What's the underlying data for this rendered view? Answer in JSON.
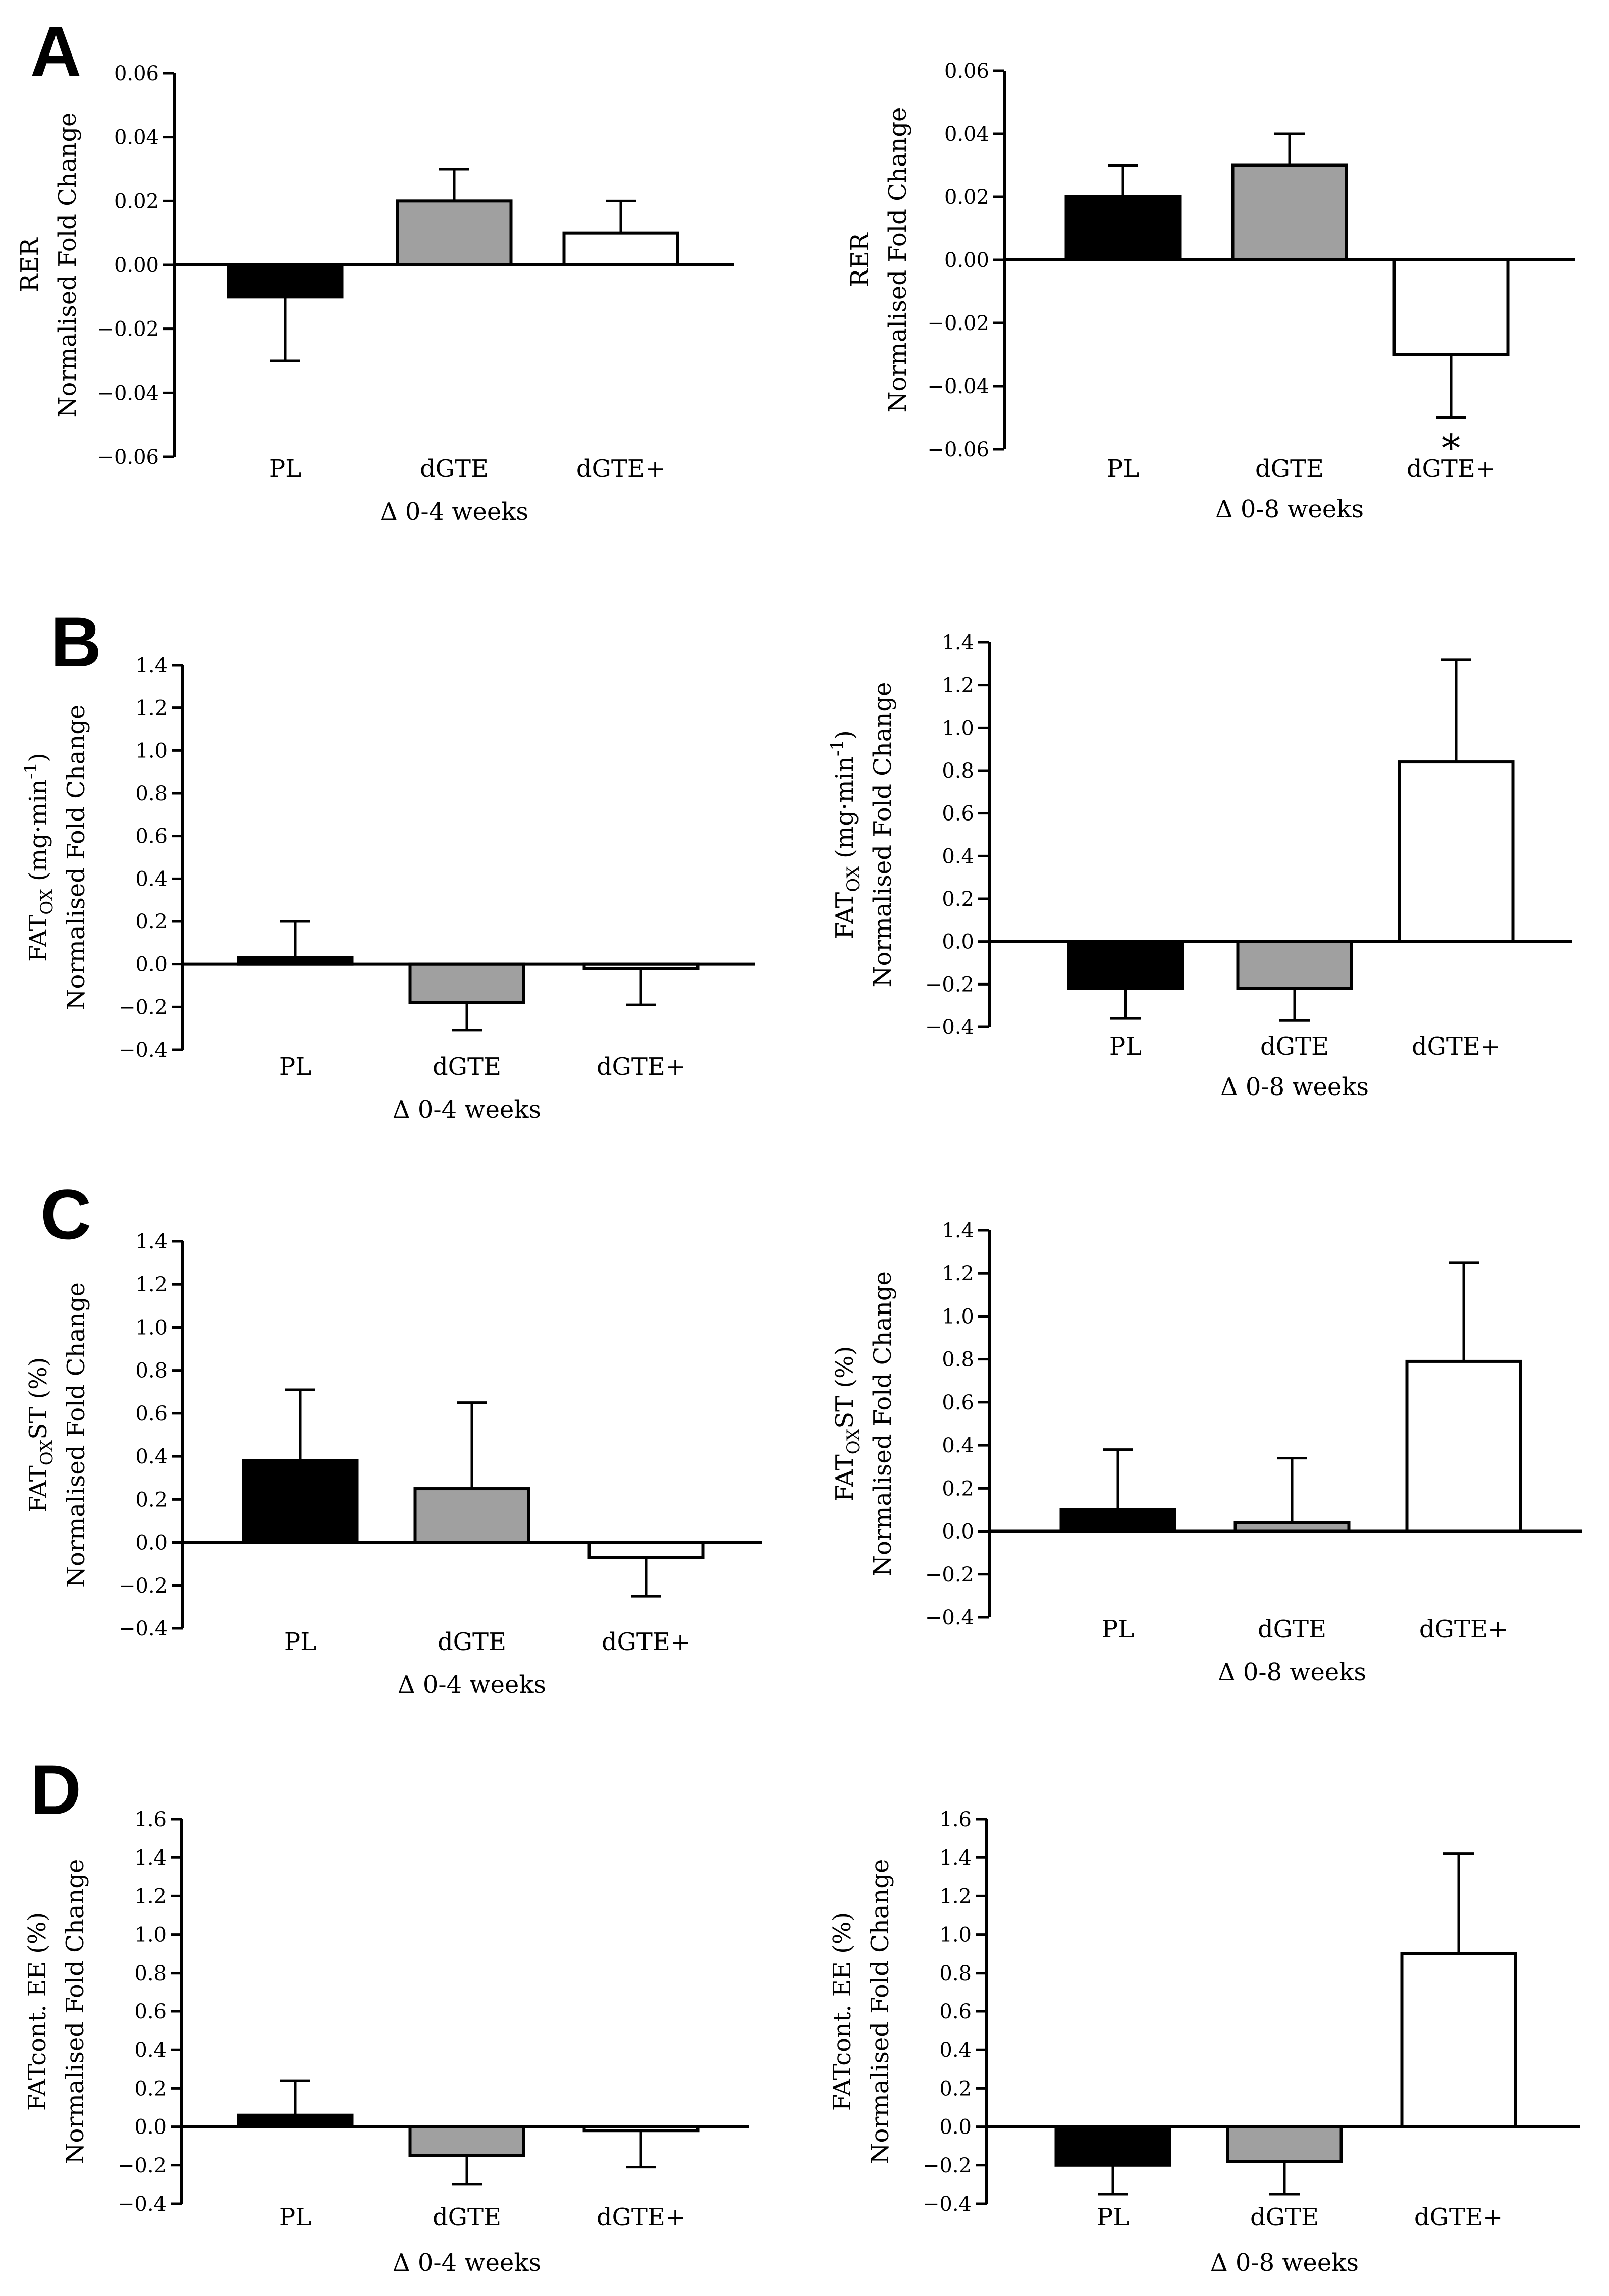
{
  "panel_letters": [
    "A",
    "B",
    "C",
    "D"
  ],
  "chart_data": [
    {
      "type": "bar",
      "panel": "A",
      "title": "",
      "categories": [
        "PL",
        "dGTE",
        "dGTE+"
      ],
      "values": [
        -0.01,
        0.02,
        0.01
      ],
      "errors": [
        0.02,
        0.01,
        0.01
      ],
      "colors": [
        "#000000",
        "#a0a0a0",
        "#ffffff"
      ],
      "ylabel": [
        "RER",
        "Normalised Fold Change"
      ],
      "xlabel": "Δ 0-4 weeks",
      "ylim": [
        -0.06,
        0.06
      ],
      "yticks": [
        "0.06",
        "0.04",
        "0.02",
        "0.00",
        "−0.02",
        "−0.04",
        "−0.06"
      ],
      "significance": [
        "",
        "",
        ""
      ]
    },
    {
      "type": "bar",
      "panel": "A",
      "title": "",
      "categories": [
        "PL",
        "dGTE",
        "dGTE+"
      ],
      "values": [
        0.02,
        0.03,
        -0.03
      ],
      "errors": [
        0.01,
        0.01,
        0.02
      ],
      "colors": [
        "#000000",
        "#a0a0a0",
        "#ffffff"
      ],
      "ylabel": [
        "RER",
        "Normalised Fold Change"
      ],
      "xlabel": "Δ 0-8 weeks",
      "ylim": [
        -0.06,
        0.06
      ],
      "yticks": [
        "0.06",
        "0.04",
        "0.02",
        "0.00",
        "−0.02",
        "−0.04",
        "−0.06"
      ],
      "significance": [
        "",
        "",
        "*"
      ]
    },
    {
      "type": "bar",
      "panel": "B",
      "title": "",
      "categories": [
        "PL",
        "dGTE",
        "dGTE+"
      ],
      "values": [
        0.03,
        -0.18,
        -0.02
      ],
      "errors": [
        0.17,
        0.13,
        0.17
      ],
      "colors": [
        "#000000",
        "#a0a0a0",
        "#ffffff"
      ],
      "ylabel": [
        "FAT",
        "OX",
        " (mg·min",
        "-1",
        ")",
        "Normalised Fold  Change"
      ],
      "xlabel": "Δ 0-4 weeks",
      "ylim": [
        -0.4,
        1.4
      ],
      "yticks": [
        "1.4",
        "1.2",
        "1.0",
        "0.8",
        "0.6",
        "0.4",
        "0.2",
        "0.0",
        "−0.2",
        "−0.4"
      ],
      "significance": [
        "",
        "",
        ""
      ]
    },
    {
      "type": "bar",
      "panel": "B",
      "title": "",
      "categories": [
        "PL",
        "dGTE",
        "dGTE+"
      ],
      "values": [
        -0.22,
        -0.22,
        0.84
      ],
      "errors": [
        0.14,
        0.15,
        0.48
      ],
      "colors": [
        "#000000",
        "#a0a0a0",
        "#ffffff"
      ],
      "ylabel": [
        "FAT",
        "OX",
        " (mg·min",
        "-1",
        ")",
        "Normalised Fold  Change"
      ],
      "xlabel": "Δ 0-8 weeks",
      "ylim": [
        -0.4,
        1.4
      ],
      "yticks": [
        "1.4",
        "1.2",
        "1.0",
        "0.8",
        "0.6",
        "0.4",
        "0.2",
        "0.0",
        "−0.2",
        "−0.4"
      ],
      "significance": [
        "",
        "",
        ""
      ]
    },
    {
      "type": "bar",
      "panel": "C",
      "title": "",
      "categories": [
        "PL",
        "dGTE",
        "dGTE+"
      ],
      "values": [
        0.38,
        0.25,
        -0.07
      ],
      "errors": [
        0.33,
        0.4,
        0.18
      ],
      "colors": [
        "#000000",
        "#a0a0a0",
        "#ffffff"
      ],
      "ylabel": [
        "FAT",
        "OX",
        "ST (%)",
        "Normalised Fold  Change"
      ],
      "xlabel": "Δ 0-4 weeks",
      "ylim": [
        -0.4,
        1.4
      ],
      "yticks": [
        "1.4",
        "1.2",
        "1.0",
        "0.8",
        "0.6",
        "0.4",
        "0.2",
        "0.0",
        "−0.2",
        "−0.4"
      ],
      "significance": [
        "",
        "",
        ""
      ]
    },
    {
      "type": "bar",
      "panel": "C",
      "title": "",
      "categories": [
        "PL",
        "dGTE",
        "dGTE+"
      ],
      "values": [
        0.1,
        0.04,
        0.79
      ],
      "errors": [
        0.28,
        0.3,
        0.46
      ],
      "colors": [
        "#000000",
        "#a0a0a0",
        "#ffffff"
      ],
      "ylabel": [
        "FAT",
        "OX",
        "ST (%)",
        "Normalised Fold  Change"
      ],
      "xlabel": "Δ 0-8 weeks",
      "ylim": [
        -0.4,
        1.4
      ],
      "yticks": [
        "1.4",
        "1.2",
        "1.0",
        "0.8",
        "0.6",
        "0.4",
        "0.2",
        "0.0",
        "−0.2",
        "−0.4"
      ],
      "significance": [
        "",
        "",
        ""
      ]
    },
    {
      "type": "bar",
      "panel": "D",
      "title": "",
      "categories": [
        "PL",
        "dGTE",
        "dGTE+"
      ],
      "values": [
        0.06,
        -0.15,
        -0.02
      ],
      "errors": [
        0.18,
        0.15,
        0.19
      ],
      "colors": [
        "#000000",
        "#a0a0a0",
        "#ffffff"
      ],
      "ylabel": [
        "FATcont. EE (%)",
        "Normalised Fold  Change"
      ],
      "xlabel": "Δ 0-4 weeks",
      "ylim": [
        -0.4,
        1.6
      ],
      "yticks": [
        "1.6",
        "1.4",
        "1.2",
        "1.0",
        "0.8",
        "0.6",
        "0.4",
        "0.2",
        "0.0",
        "−0.2",
        "−0.4"
      ],
      "significance": [
        "",
        "",
        ""
      ]
    },
    {
      "type": "bar",
      "panel": "D",
      "title": "",
      "categories": [
        "PL",
        "dGTE",
        "dGTE+"
      ],
      "values": [
        -0.2,
        -0.18,
        0.9
      ],
      "errors": [
        0.15,
        0.17,
        0.52
      ],
      "colors": [
        "#000000",
        "#a0a0a0",
        "#ffffff"
      ],
      "ylabel": [
        "FATcont. EE (%)",
        "Normalised Fold  Change"
      ],
      "xlabel": "Δ 0-8 weeks",
      "ylim": [
        -0.4,
        1.6
      ],
      "yticks": [
        "1.6",
        "1.4",
        "1.2",
        "1.0",
        "0.8",
        "0.6",
        "0.4",
        "0.2",
        "0.0",
        "−0.2",
        "−0.4"
      ],
      "significance": [
        "",
        "",
        ""
      ]
    }
  ]
}
